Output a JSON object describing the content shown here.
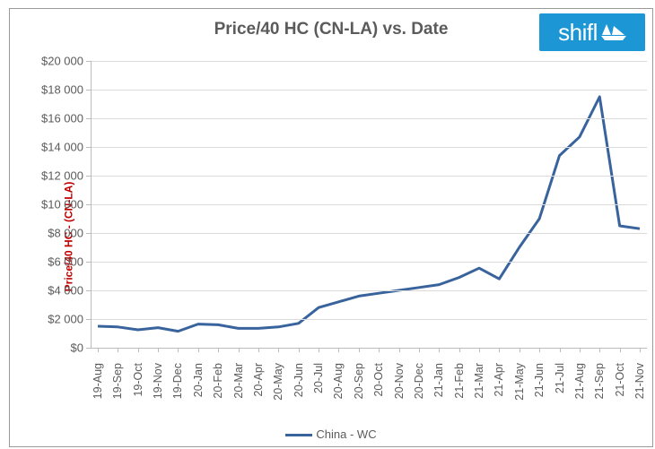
{
  "chart": {
    "type": "line",
    "title": "Price/40 HC (CN-LA) vs. Date",
    "y_axis_title": "Price/40 HC - (CN-LA)",
    "y_axis_title_color": "#c00000",
    "title_color": "#5b5b5b",
    "title_fontsize": 19,
    "background_color": "#ffffff",
    "border_color": "#9a9a9a",
    "grid_color": "#dadada",
    "axis_color": "#bcbcbc",
    "tick_color": "#5b5b5b",
    "tick_fontsize": 13,
    "line_color": "#39639d",
    "line_width": 3,
    "ylim": [
      0,
      20000
    ],
    "ytick_step": 2000,
    "ytick_prefix": "$",
    "ytick_thousand_sep": " ",
    "categories": [
      "19-Aug",
      "19-Sep",
      "19-Oct",
      "19-Nov",
      "19-Dec",
      "20-Jan",
      "20-Feb",
      "20-Mar",
      "20-Apr",
      "20-May",
      "20-Jun",
      "20-Jul",
      "20-Aug",
      "20-Sep",
      "20-Oct",
      "20-Nov",
      "20-Dec",
      "21-Jan",
      "21-Feb",
      "21-Mar",
      "21-Apr",
      "21-May",
      "21-Jun",
      "21-Jul",
      "21-Aug",
      "21-Sep",
      "21-Oct",
      "21-Nov"
    ],
    "values": [
      1500,
      1450,
      1250,
      1400,
      1150,
      1650,
      1600,
      1350,
      1350,
      1450,
      1700,
      2800,
      3200,
      3600,
      3800,
      4000,
      4200,
      4400,
      4900,
      5550,
      4800,
      7000,
      9000,
      13400,
      14700,
      17500,
      8500,
      8300
    ],
    "legend": {
      "label": "China - WC",
      "color": "#39639d"
    },
    "logo": {
      "text": "shifl",
      "bg_color": "#1c96d4",
      "text_color": "#ffffff"
    }
  }
}
